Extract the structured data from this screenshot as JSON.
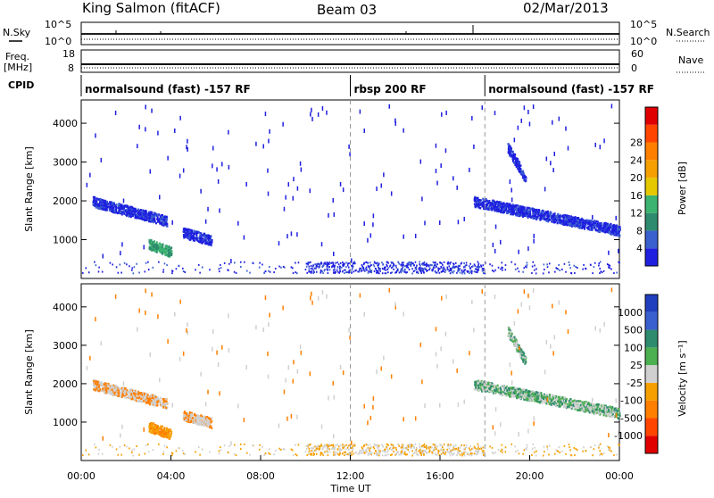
{
  "header": {
    "station": "King Salmon (fitACF)",
    "beam": "Beam 03",
    "date": "02/Mar/2013"
  },
  "side_labels": {
    "nsky": "N.Sky",
    "freq": "Freq.",
    "freq_unit": "[MHz]",
    "cpid": "CPID",
    "nsearch": "N.Search",
    "nave": "Nave"
  },
  "noise_ticks": {
    "left_top": "10^5",
    "left_bottom": "10^0",
    "right_top": "10^5",
    "right_bottom": "10^0"
  },
  "freq_ticks": {
    "left_top": "18",
    "left_bottom": "8",
    "right_top": "60",
    "right_bottom": "0"
  },
  "cpid_segments": [
    {
      "label": "normalsound (fast) -157 RF",
      "start": 0,
      "end": 12
    },
    {
      "label": "rbsp 200 RF",
      "start": 12,
      "end": 18
    },
    {
      "label": "normalsound (fast) -157 RF",
      "start": 18,
      "end": 24
    }
  ],
  "colorbars": {
    "power": {
      "label": "Power [dB]",
      "colors": [
        "#1f1fe0",
        "#3a5fcf",
        "#2e8b6e",
        "#3cb371",
        "#e6c800",
        "#f5a000",
        "#ff7f00",
        "#ff4500",
        "#e00000"
      ],
      "ticks": [
        "4",
        "8",
        "12",
        "16",
        "20",
        "24",
        "28"
      ]
    },
    "velocity": {
      "label": "Velocity [m s⁻¹]",
      "colors": [
        "#e00000",
        "#ff4500",
        "#ff7f00",
        "#f5a000",
        "#d0d0d0",
        "#4caf50",
        "#2e8b6e",
        "#3a5fcf",
        "#1f3fbf"
      ],
      "ticks": [
        "-1000",
        "-500",
        "-100",
        "-25",
        "25",
        "100",
        "500",
        "1000"
      ]
    }
  },
  "chart_data": [
    {
      "type": "heatmap",
      "title": "",
      "ylabel": "Slant Range [km]",
      "colorbar_label": "Power [dB]",
      "xlim": [
        0,
        24
      ],
      "ylim": [
        0,
        4600
      ],
      "yticks": [
        1000,
        2000,
        3000,
        4000
      ],
      "features": [
        {
          "t_start": 0.5,
          "t_end": 3.8,
          "range_start": 2000,
          "range_end": 1500,
          "level": "low"
        },
        {
          "t_start": 3.0,
          "t_end": 4.0,
          "range_start": 900,
          "range_end": 700,
          "level": "mid"
        },
        {
          "t_start": 4.5,
          "t_end": 5.8,
          "range_start": 1200,
          "range_end": 1000,
          "level": "low"
        },
        {
          "t_start": 17.5,
          "t_end": 24.0,
          "range_start": 2000,
          "range_end": 1250,
          "level": "low"
        },
        {
          "t_start": 19.0,
          "t_end": 19.8,
          "range_start": 3400,
          "range_end": 2600,
          "level": "low"
        }
      ]
    },
    {
      "type": "heatmap",
      "title": "",
      "xlabel": "Time UT",
      "ylabel": "Slant Range [km]",
      "colorbar_label": "Velocity [m s⁻¹]",
      "xlim": [
        0,
        24
      ],
      "ylim": [
        0,
        4600
      ],
      "yticks": [
        1000,
        2000,
        3000,
        4000
      ],
      "xticks": [
        "00:00",
        "04:00",
        "08:00",
        "12:00",
        "16:00",
        "20:00",
        "00:00"
      ]
    }
  ],
  "xaxis": {
    "label": "Time UT",
    "ticks": [
      "00:00",
      "04:00",
      "08:00",
      "12:00",
      "16:00",
      "20:00",
      "00:00"
    ]
  }
}
